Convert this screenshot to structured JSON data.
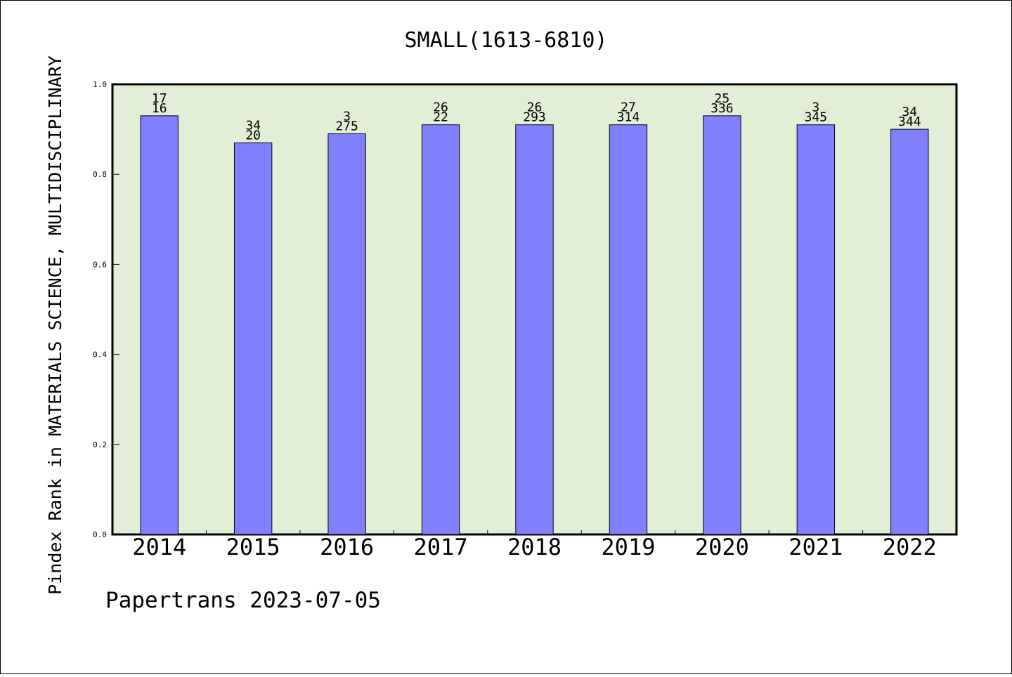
{
  "chart_data": {
    "type": "bar",
    "title": "SMALL(1613-6810)",
    "xlabel": "",
    "ylabel": "Pindex Rank in MATERIALS SCIENCE, MULTIDISCIPLINARY",
    "ylim": [
      0,
      1.0
    ],
    "yticks": [
      "0.0",
      "0.2",
      "0.4",
      "0.6",
      "0.8",
      "1.0"
    ],
    "categories": [
      "2014",
      "2015",
      "2016",
      "2017",
      "2018",
      "2019",
      "2020",
      "2021",
      "2022"
    ],
    "values": [
      0.93,
      0.87,
      0.89,
      0.91,
      0.91,
      0.91,
      0.93,
      0.91,
      0.9
    ],
    "labels_top": [
      "17",
      "34",
      "3",
      "26",
      "26",
      "27",
      "25",
      "3",
      "34"
    ],
    "labels_bottom": [
      "16",
      "20",
      "275",
      "22",
      "293",
      "314",
      "336",
      "345",
      "344"
    ],
    "grid": false,
    "colors": {
      "bar": "#8080ff",
      "plot_background": "#e2efd6"
    }
  },
  "footer": {
    "text": "Papertrans 2023-07-05"
  }
}
